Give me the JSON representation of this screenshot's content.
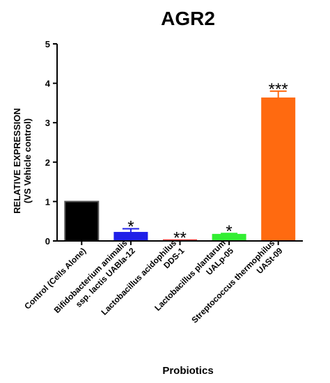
{
  "chart_data": {
    "type": "bar",
    "title": "AGR2",
    "xlabel": "Probiotics",
    "ylabel": [
      "RELATIVE EXPRESSION",
      "(VS Vehicle control)"
    ],
    "ylim": [
      0,
      5
    ],
    "yticks": [
      "0",
      "1",
      "2",
      "3",
      "4",
      "5"
    ],
    "grid": false,
    "categories": [
      [
        "Control (Cells Alone)"
      ],
      [
        "Bifidobacterium animalis",
        "ssp. lactis UABla-12"
      ],
      [
        "Lactobacillus acidophilus",
        "DDS-1"
      ],
      [
        "Lactobacillus plantarum",
        "UALp-05"
      ],
      [
        "Streptococcus thermophilus",
        "UASt-09"
      ]
    ],
    "values": [
      1.0,
      0.22,
      0.03,
      0.17,
      3.63
    ],
    "errors": [
      0.0,
      0.09,
      0.0,
      0.02,
      0.17
    ],
    "significance": [
      "",
      "*",
      "**",
      "*",
      "***"
    ],
    "colors": [
      "#000000",
      "#1f1fe8",
      "#e8211c",
      "#33ee33",
      "#ff6a10"
    ]
  }
}
